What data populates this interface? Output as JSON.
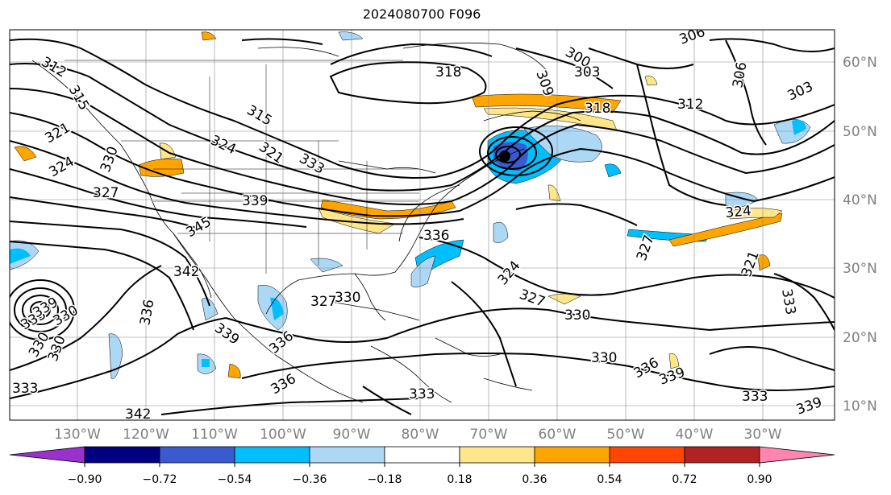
{
  "title": "2024080700 F096",
  "lon_labels": [
    "130°W",
    "120°W",
    "110°W",
    "100°W",
    "90°W",
    "80°W",
    "70°W",
    "60°W",
    "50°W",
    "40°W",
    "30°W"
  ],
  "lat_labels": [
    "60°N",
    "50°N",
    "40°N",
    "30°N",
    "20°N",
    "10°N"
  ],
  "colorbar": {
    "ticks": [
      "−0.90",
      "−0.72",
      "−0.54",
      "−0.36",
      "−0.18",
      "0.18",
      "0.36",
      "0.54",
      "0.72",
      "0.90"
    ],
    "colors": [
      "#9932cc",
      "#000080",
      "#3a5bcf",
      "#00bfff",
      "#add8f5",
      "#ffffff",
      "#ffe68a",
      "#ffa500",
      "#ff4500",
      "#b22222",
      "#ff85b0"
    ]
  },
  "contour_labels": [
    "312",
    "315",
    "318",
    "306",
    "300",
    "303",
    "309",
    "318",
    "312",
    "306",
    "303",
    "321",
    "324",
    "327",
    "330",
    "315",
    "324",
    "333",
    "336",
    "321",
    "345",
    "342",
    "336",
    "330",
    "339",
    "336",
    "327",
    "330",
    "333",
    "339",
    "324",
    "327",
    "330",
    "327",
    "324",
    "321",
    "333",
    "336",
    "339",
    "330",
    "336",
    "333",
    "342",
    "333",
    "339",
    "330",
    "330",
    "333",
    "339"
  ],
  "extremum_labels": []
}
